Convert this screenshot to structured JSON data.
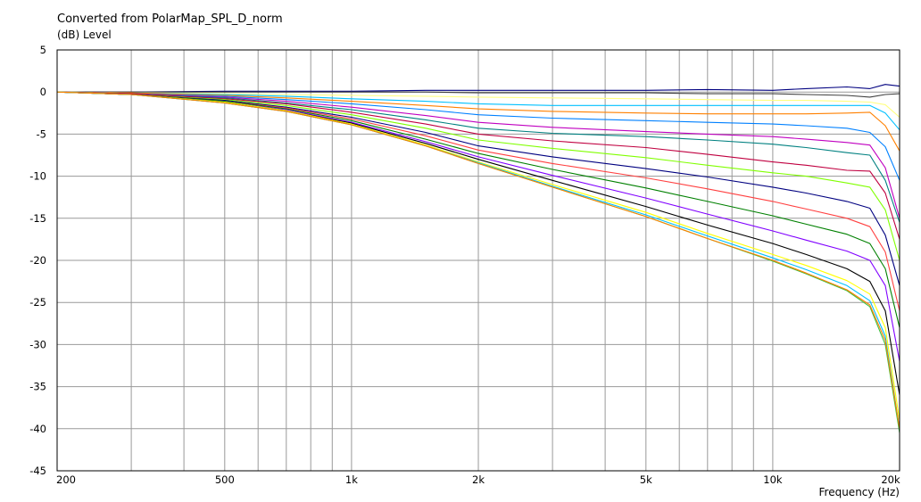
{
  "chart_data": {
    "type": "line",
    "title": "Converted from PolarMap_SPL_D_norm",
    "ylabel": "(dB)  Level",
    "xlabel": "Frequency  (Hz)",
    "xscale": "log",
    "xlim": [
      200,
      20000
    ],
    "ylim": [
      -45,
      5
    ],
    "grid": true,
    "x_ticks": [
      200,
      500,
      1000,
      2000,
      5000,
      10000,
      20000
    ],
    "x_tick_labels": [
      "200",
      "500",
      "1k",
      "2k",
      "5k",
      "10k",
      "20k"
    ],
    "y_ticks": [
      5,
      0,
      -5,
      -10,
      -15,
      -20,
      -25,
      -30,
      -35,
      -40,
      -45
    ],
    "y_tick_labels": [
      "5",
      "0",
      "-5",
      "-10",
      "-15",
      "-20",
      "-25",
      "-30",
      "-35",
      "-40",
      "-45"
    ],
    "x": [
      200,
      300,
      500,
      700,
      1000,
      1500,
      2000,
      3000,
      5000,
      7000,
      10000,
      12000,
      15000,
      17000,
      18500,
      20000
    ],
    "series": [
      {
        "color": "#000080",
        "values": [
          0,
          0,
          0.1,
          0.1,
          0.1,
          0.2,
          0.2,
          0.2,
          0.2,
          0.3,
          0.2,
          0.4,
          0.6,
          0.4,
          0.9,
          0.7
        ]
      },
      {
        "color": "#404040",
        "values": [
          0,
          0,
          0,
          0,
          0,
          0,
          -0.1,
          -0.1,
          -0.1,
          -0.2,
          -0.2,
          -0.3,
          -0.4,
          -0.6,
          -0.3,
          -0.2
        ]
      },
      {
        "color": "#ffff80",
        "values": [
          0,
          -0.1,
          -0.2,
          -0.3,
          -0.4,
          -0.5,
          -0.6,
          -0.7,
          -0.8,
          -0.9,
          -1.0,
          -1.0,
          -1.1,
          -1.2,
          -1.5,
          -3.0
        ]
      },
      {
        "color": "#00c0ff",
        "values": [
          0,
          -0.1,
          -0.3,
          -0.5,
          -0.8,
          -1.1,
          -1.4,
          -1.6,
          -1.6,
          -1.6,
          -1.6,
          -1.6,
          -1.6,
          -1.6,
          -2.5,
          -4.5
        ]
      },
      {
        "color": "#ff8000",
        "values": [
          0,
          -0.1,
          -0.4,
          -0.7,
          -1.1,
          -1.6,
          -2.0,
          -2.3,
          -2.5,
          -2.6,
          -2.6,
          -2.6,
          -2.5,
          -2.4,
          -4.0,
          -7.0
        ]
      },
      {
        "color": "#0080ff",
        "values": [
          0,
          -0.2,
          -0.5,
          -0.9,
          -1.4,
          -2.1,
          -2.7,
          -3.1,
          -3.4,
          -3.6,
          -3.8,
          -4.0,
          -4.3,
          -4.8,
          -6.5,
          -10.5
        ]
      },
      {
        "color": "#c000c0",
        "values": [
          0,
          -0.2,
          -0.6,
          -1.1,
          -1.8,
          -2.8,
          -3.6,
          -4.2,
          -4.7,
          -5.0,
          -5.3,
          -5.6,
          -6.0,
          -6.3,
          -9.0,
          -15.0
        ]
      },
      {
        "color": "#008080",
        "values": [
          0,
          -0.2,
          -0.7,
          -1.3,
          -2.1,
          -3.3,
          -4.3,
          -4.9,
          -5.3,
          -5.7,
          -6.2,
          -6.6,
          -7.2,
          -7.5,
          -10.5,
          -15.5
        ]
      },
      {
        "color": "#c00040",
        "values": [
          0,
          -0.2,
          -0.8,
          -1.4,
          -2.4,
          -3.8,
          -5.0,
          -5.8,
          -6.6,
          -7.4,
          -8.3,
          -8.7,
          -9.3,
          -9.4,
          -12.0,
          -17.5
        ]
      },
      {
        "color": "#80ff00",
        "values": [
          0,
          -0.3,
          -0.9,
          -1.6,
          -2.7,
          -4.3,
          -5.7,
          -6.7,
          -7.8,
          -8.7,
          -9.6,
          -10.0,
          -10.8,
          -11.3,
          -14.0,
          -20.0
        ]
      },
      {
        "color": "#000080",
        "values": [
          0,
          -0.3,
          -1.0,
          -1.8,
          -3.0,
          -4.8,
          -6.4,
          -7.7,
          -9.1,
          -10.1,
          -11.3,
          -12.0,
          -13.0,
          -13.8,
          -17.0,
          -23.0
        ]
      },
      {
        "color": "#ff4040",
        "values": [
          0,
          -0.3,
          -1.1,
          -1.9,
          -3.2,
          -5.2,
          -6.9,
          -8.5,
          -10.2,
          -11.5,
          -13.0,
          -13.9,
          -15.0,
          -16.0,
          -19.0,
          -26.0
        ]
      },
      {
        "color": "#008000",
        "values": [
          0,
          -0.3,
          -1.1,
          -2.0,
          -3.4,
          -5.6,
          -7.3,
          -9.2,
          -11.4,
          -13.0,
          -14.7,
          -15.7,
          -16.9,
          -18.0,
          -21.0,
          -28.0
        ]
      },
      {
        "color": "#8000ff",
        "values": [
          0,
          -0.3,
          -1.2,
          -2.1,
          -3.6,
          -5.9,
          -7.7,
          -9.9,
          -12.6,
          -14.5,
          -16.5,
          -17.6,
          -18.9,
          -20.0,
          -23.0,
          -32.0
        ]
      },
      {
        "color": "#000000",
        "values": [
          0,
          -0.3,
          -1.2,
          -2.2,
          -3.7,
          -6.1,
          -8.0,
          -10.5,
          -13.6,
          -15.8,
          -18.0,
          -19.3,
          -21.0,
          -22.5,
          -26.0,
          -36.0
        ]
      },
      {
        "color": "#ffff00",
        "values": [
          0,
          -0.3,
          -1.2,
          -2.2,
          -3.8,
          -6.3,
          -8.3,
          -11.0,
          -14.3,
          -16.8,
          -19.3,
          -20.6,
          -22.4,
          -24.0,
          -28.0,
          -39.0
        ]
      },
      {
        "color": "#00c0ff",
        "values": [
          0,
          -0.3,
          -1.3,
          -2.3,
          -3.9,
          -6.4,
          -8.4,
          -11.2,
          -14.6,
          -17.1,
          -19.7,
          -21.1,
          -23.0,
          -24.8,
          -29.0,
          -40.0
        ]
      },
      {
        "color": "#40c040",
        "values": [
          0,
          -0.3,
          -1.3,
          -2.3,
          -3.9,
          -6.4,
          -8.5,
          -11.3,
          -14.8,
          -17.4,
          -20.1,
          -21.6,
          -23.6,
          -25.5,
          -30.0,
          -40.5
        ]
      },
      {
        "color": "#ff8000",
        "values": [
          0,
          -0.3,
          -1.3,
          -2.3,
          -3.9,
          -6.4,
          -8.5,
          -11.3,
          -14.8,
          -17.4,
          -20.0,
          -21.5,
          -23.5,
          -25.3,
          -29.5,
          -40.0
        ]
      }
    ]
  }
}
